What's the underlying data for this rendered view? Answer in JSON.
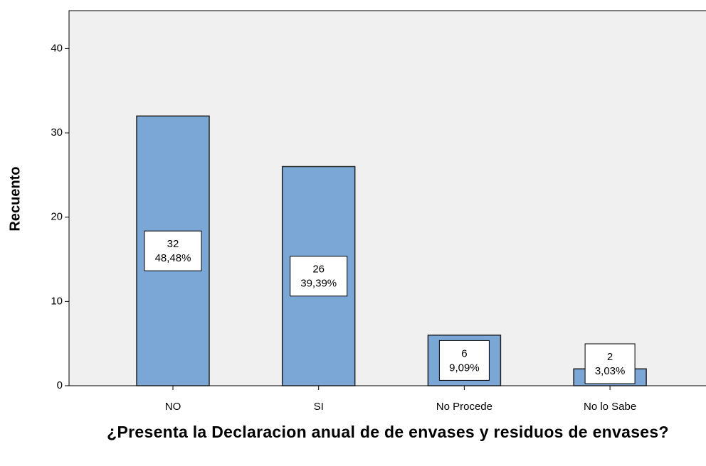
{
  "chart_data": {
    "type": "bar",
    "y_label": "Recuento",
    "x_label": "¿Presenta la Declaracion anual de de envases y residuos de envases?",
    "categories": [
      "NO",
      "SI",
      "No Procede",
      "No lo Sabe"
    ],
    "values": [
      32,
      26,
      6,
      2
    ],
    "percents": [
      48.48,
      39.39,
      9.09,
      3.03
    ],
    "percent_labels": [
      "48,48%",
      "39,39%",
      "9,09%",
      "3,03%"
    ],
    "color": "#7aa7d6",
    "ylim": [
      0,
      44.5
    ],
    "yticks": [
      0,
      10,
      20,
      30,
      40
    ]
  }
}
